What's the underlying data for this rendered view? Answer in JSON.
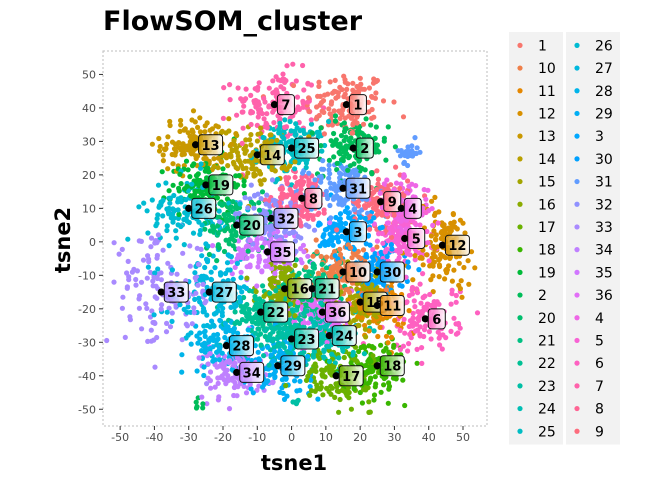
{
  "chart_data": {
    "type": "scatter",
    "title": "FlowSOM_cluster",
    "xlabel": "tsne1",
    "ylabel": "tsne2",
    "xlim": [
      -55,
      57
    ],
    "ylim": [
      -55,
      57
    ],
    "xticks": [
      -50,
      -40,
      -30,
      -20,
      -10,
      0,
      10,
      20,
      30,
      40,
      50
    ],
    "yticks": [
      -50,
      -40,
      -30,
      -20,
      -10,
      0,
      10,
      20,
      30,
      40,
      50
    ],
    "grid": false,
    "legend_position": "right",
    "legend_order": [
      "1",
      "10",
      "11",
      "12",
      "13",
      "14",
      "15",
      "16",
      "17",
      "18",
      "19",
      "2",
      "20",
      "21",
      "22",
      "23",
      "24",
      "25",
      "26",
      "27",
      "28",
      "29",
      "3",
      "30",
      "31",
      "32",
      "33",
      "34",
      "35",
      "36",
      "4",
      "5",
      "6",
      "7",
      "8",
      "9"
    ],
    "colors": {
      "1": "#F8766D",
      "10": "#EF7F49",
      "11": "#E58700",
      "12": "#D89000",
      "13": "#C99800",
      "14": "#B9A000",
      "15": "#A3A500",
      "16": "#8BAB00",
      "17": "#6BB100",
      "18": "#39B600",
      "19": "#00BA38",
      "2": "#00BC59",
      "20": "#00BE6D",
      "21": "#00C082",
      "22": "#00C094",
      "23": "#00BFA5",
      "24": "#00BFB5",
      "25": "#00BDC4",
      "26": "#00BBD2",
      "27": "#00B8DE",
      "28": "#00B4EA",
      "29": "#00AEF4",
      "3": "#00A8FF",
      "30": "#00A1FF",
      "31": "#619CFF",
      "32": "#8F91FF",
      "33": "#A98AFF",
      "34": "#BF80FF",
      "35": "#D177FF",
      "36": "#E26EF7",
      "4": "#EE67E6",
      "5": "#F863D4",
      "6": "#FE61C1",
      "7": "#FF62AB",
      "8": "#FF6594",
      "9": "#FD6C7D"
    },
    "clusters": [
      {
        "id": "1",
        "x": 16,
        "y": 41,
        "sx": 6,
        "sy": 5
      },
      {
        "id": "7",
        "x": -5,
        "y": 41,
        "sx": 6,
        "sy": 5
      },
      {
        "id": "13",
        "x": -28,
        "y": 29,
        "sx": 5,
        "sy": 4
      },
      {
        "id": "25",
        "x": 0,
        "y": 28,
        "sx": 5,
        "sy": 4
      },
      {
        "id": "14",
        "x": -10,
        "y": 26,
        "sx": 5,
        "sy": 4
      },
      {
        "id": "2",
        "x": 18,
        "y": 28,
        "sx": 5,
        "sy": 4
      },
      {
        "id": "19",
        "x": -25,
        "y": 17,
        "sx": 5,
        "sy": 4
      },
      {
        "id": "31",
        "x": 15,
        "y": 16,
        "sx": 5,
        "sy": 4
      },
      {
        "id": "8",
        "x": 3,
        "y": 13,
        "sx": 4,
        "sy": 4
      },
      {
        "id": "9",
        "x": 26,
        "y": 12,
        "sx": 4,
        "sy": 4
      },
      {
        "id": "4",
        "x": 32,
        "y": 10,
        "sx": 4,
        "sy": 4
      },
      {
        "id": "26",
        "x": -30,
        "y": 10,
        "sx": 6,
        "sy": 5
      },
      {
        "id": "20",
        "x": -16,
        "y": 5,
        "sx": 5,
        "sy": 4
      },
      {
        "id": "32",
        "x": -6,
        "y": 7,
        "sx": 5,
        "sy": 4
      },
      {
        "id": "3",
        "x": 16,
        "y": 3,
        "sx": 4,
        "sy": 4
      },
      {
        "id": "5",
        "x": 33,
        "y": 1,
        "sx": 4,
        "sy": 4
      },
      {
        "id": "12",
        "x": 44,
        "y": -1,
        "sx": 5,
        "sy": 6
      },
      {
        "id": "35",
        "x": -7,
        "y": -3,
        "sx": 5,
        "sy": 4
      },
      {
        "id": "10",
        "x": 15,
        "y": -9,
        "sx": 5,
        "sy": 4
      },
      {
        "id": "30",
        "x": 25,
        "y": -9,
        "sx": 4,
        "sy": 4
      },
      {
        "id": "16",
        "x": -2,
        "y": -14,
        "sx": 4,
        "sy": 4
      },
      {
        "id": "21",
        "x": 6,
        "y": -14,
        "sx": 4,
        "sy": 4
      },
      {
        "id": "33",
        "x": -38,
        "y": -15,
        "sx": 8,
        "sy": 8
      },
      {
        "id": "27",
        "x": -24,
        "y": -15,
        "sx": 6,
        "sy": 6
      },
      {
        "id": "15",
        "x": 20,
        "y": -18,
        "sx": 4,
        "sy": 4
      },
      {
        "id": "11",
        "x": 25,
        "y": -19,
        "sx": 4,
        "sy": 4
      },
      {
        "id": "22",
        "x": -9,
        "y": -21,
        "sx": 5,
        "sy": 4
      },
      {
        "id": "36",
        "x": 9,
        "y": -21,
        "sx": 4,
        "sy": 4
      },
      {
        "id": "6",
        "x": 39,
        "y": -23,
        "sx": 5,
        "sy": 5
      },
      {
        "id": "23",
        "x": 0,
        "y": -29,
        "sx": 5,
        "sy": 4
      },
      {
        "id": "24",
        "x": 11,
        "y": -28,
        "sx": 4,
        "sy": 4
      },
      {
        "id": "28",
        "x": -19,
        "y": -31,
        "sx": 5,
        "sy": 4
      },
      {
        "id": "29",
        "x": -4,
        "y": -37,
        "sx": 5,
        "sy": 4
      },
      {
        "id": "18",
        "x": 25,
        "y": -37,
        "sx": 5,
        "sy": 4
      },
      {
        "id": "17",
        "x": 13,
        "y": -40,
        "sx": 5,
        "sy": 4
      },
      {
        "id": "34",
        "x": -16,
        "y": -39,
        "sx": 5,
        "sy": 4
      }
    ],
    "extra_blobs": [
      {
        "id": "31",
        "x": 34,
        "y": 27,
        "sx": 1.5,
        "sy": 1.5,
        "n": 25
      },
      {
        "id": "2",
        "x": -28,
        "y": -49,
        "sx": 1,
        "sy": 1,
        "n": 6
      },
      {
        "id": "23",
        "x": 1,
        "y": -48,
        "sx": 0.6,
        "sy": 0.6,
        "n": 5
      }
    ]
  }
}
